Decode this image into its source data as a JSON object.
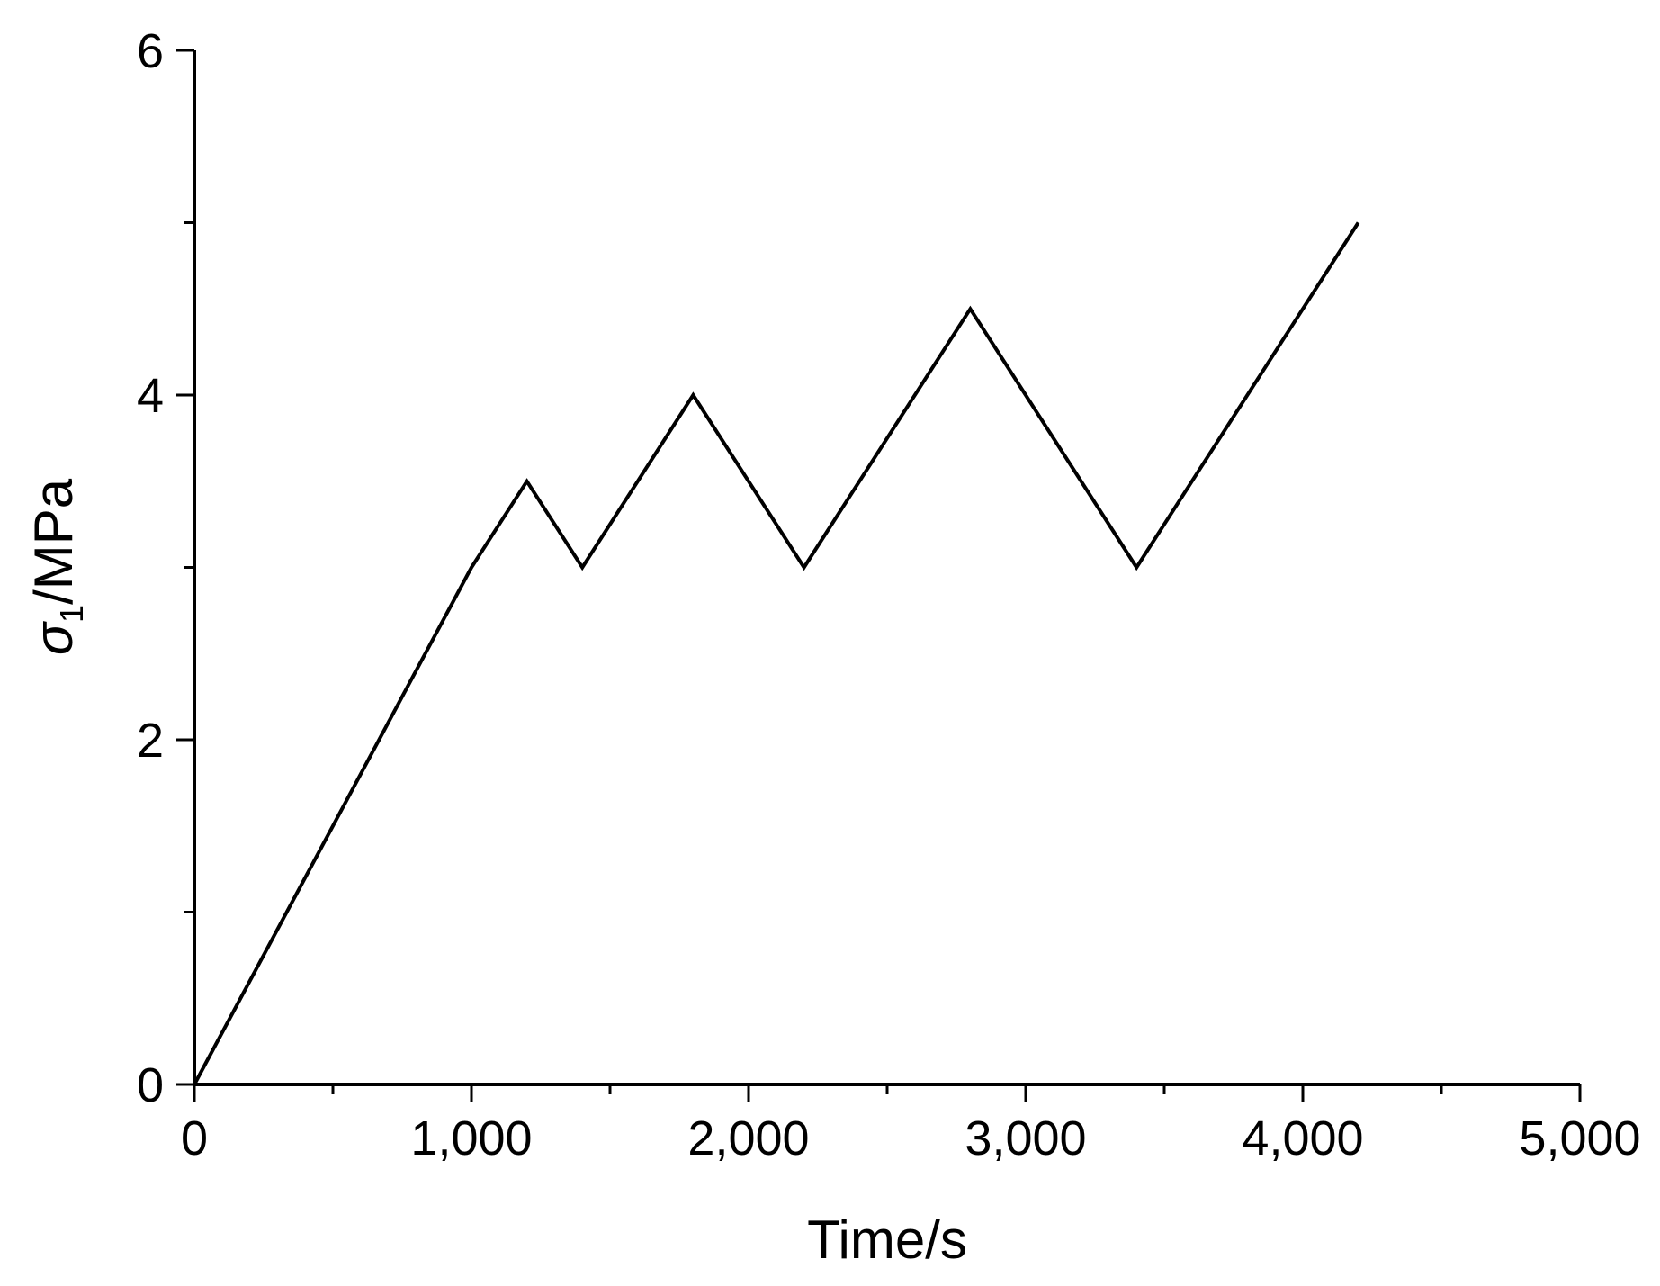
{
  "chart_data": {
    "type": "line",
    "title": "",
    "xlabel": "Time/s",
    "ylabel": {
      "symbol": "σ",
      "subscript": "1",
      "unit": "/MPa"
    },
    "xlim": [
      0,
      5000
    ],
    "ylim": [
      0,
      6
    ],
    "x_major_ticks": [
      0,
      1000,
      2000,
      3000,
      4000,
      5000
    ],
    "x_tick_labels": [
      "0",
      "1,000",
      "2,000",
      "3,000",
      "4,000",
      "5,000"
    ],
    "x_minor_ticks": [
      500,
      1500,
      2500,
      3500,
      4500
    ],
    "y_major_ticks": [
      0,
      2,
      4,
      6
    ],
    "y_tick_labels": [
      "0",
      "2",
      "4",
      "6"
    ],
    "y_minor_ticks": [
      1,
      3,
      5
    ],
    "grid": false,
    "legend": "none",
    "series": [
      {
        "color": "#000000",
        "x": [
          0,
          1000,
          1200,
          1400,
          1800,
          2200,
          2800,
          3400,
          4200
        ],
        "y": [
          0,
          3,
          3.5,
          3,
          4,
          3,
          4.5,
          3,
          5
        ]
      }
    ]
  }
}
